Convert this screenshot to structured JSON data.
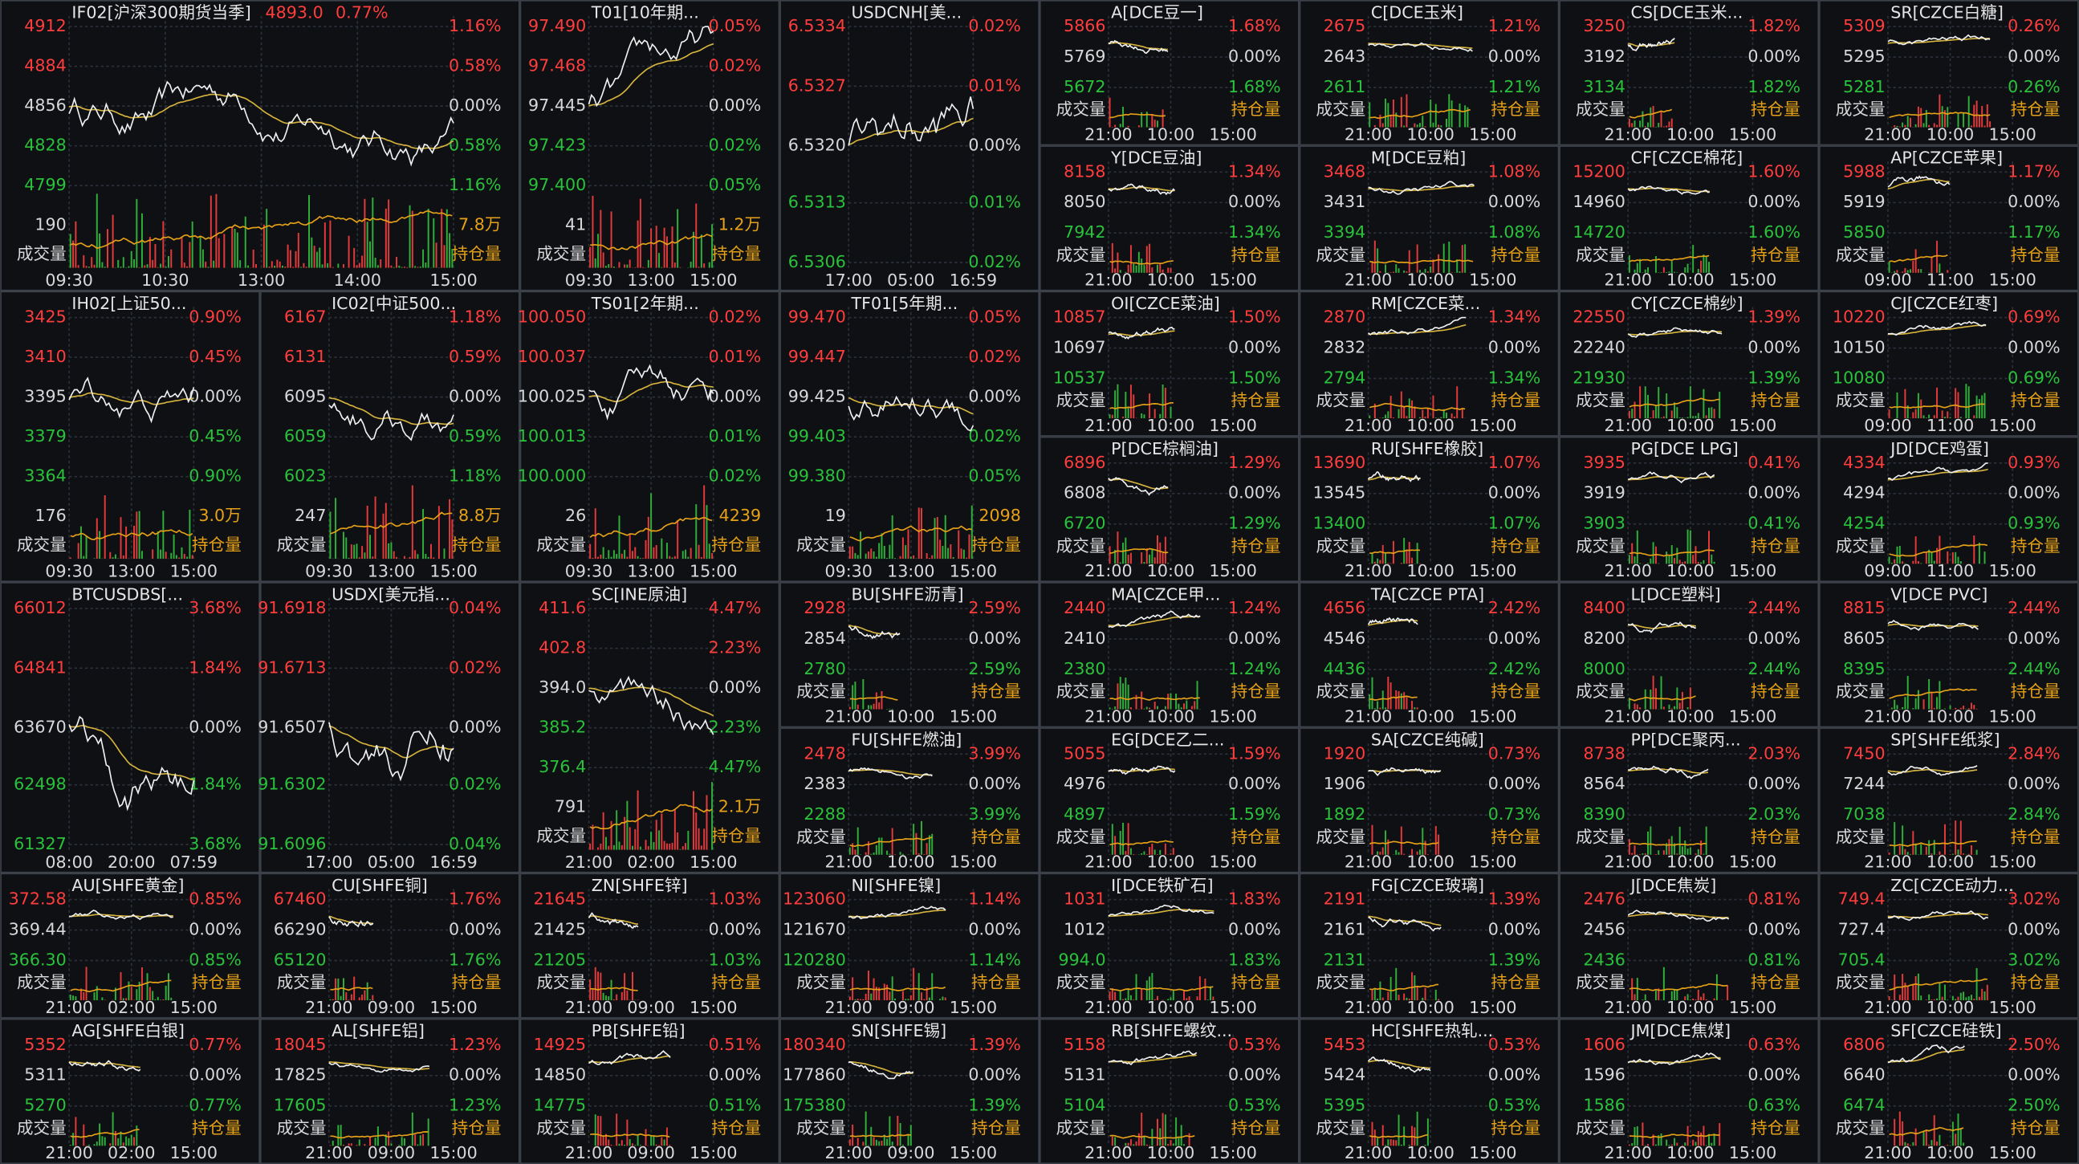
{
  "labels": {
    "volume": "成交量",
    "open_interest": "持仓量"
  },
  "panels": [
    {
      "title": "IF02[沪深300期货当季]",
      "quote": {
        "price": "4893.0",
        "change": "0.77%"
      },
      "prices": [
        "4912",
        "4884",
        "4856",
        "4828",
        "4799"
      ],
      "pcts": [
        "1.16%",
        "0.58%",
        "0.00%",
        "0.58%",
        "1.16%"
      ],
      "vol": "190",
      "oi": "7.8万",
      "times": [
        "09:30",
        "10:30",
        "13:00",
        "14:00",
        "15:00"
      ]
    },
    {
      "title": "T01[10年期...",
      "prices": [
        "97.490",
        "97.468",
        "97.445",
        "97.423",
        "97.400"
      ],
      "pcts": [
        "0.05%",
        "0.02%",
        "0.00%",
        "0.02%",
        "0.05%"
      ],
      "vol": "41",
      "oi": "1.2万",
      "times": [
        "09:30",
        "13:00",
        "15:00"
      ]
    },
    {
      "title": "USDCNH[美...",
      "prices": [
        "6.5334",
        "6.5327",
        "6.5320",
        "6.5313",
        "6.5306"
      ],
      "pcts": [
        "0.02%",
        "0.01%",
        "0.00%",
        "0.01%",
        "0.02%"
      ],
      "times": [
        "17:00",
        "05:00",
        "16:59"
      ]
    },
    {
      "title": "A[DCE豆一]",
      "prices": [
        "5866",
        "5769",
        "5672"
      ],
      "pcts": [
        "1.68%",
        "0.00%",
        "1.68%"
      ],
      "times": [
        "21:00",
        "10:00",
        "15:00"
      ]
    },
    {
      "title": "C[DCE玉米]",
      "prices": [
        "2675",
        "2643",
        "2611"
      ],
      "pcts": [
        "1.21%",
        "0.00%",
        "1.21%"
      ],
      "times": [
        "21:00",
        "10:00",
        "15:00"
      ]
    },
    {
      "title": "CS[DCE玉米...",
      "prices": [
        "3250",
        "3192",
        "3134"
      ],
      "pcts": [
        "1.82%",
        "0.00%",
        "1.82%"
      ],
      "times": [
        "21:00",
        "10:00",
        "15:00"
      ]
    },
    {
      "title": "SR[CZCE白糖]",
      "prices": [
        "5309",
        "5295",
        "5281"
      ],
      "pcts": [
        "0.26%",
        "0.00%",
        "0.26%"
      ],
      "times": [
        "21:00",
        "10:00",
        "15:00"
      ]
    },
    {
      "title": "Y[DCE豆油]",
      "prices": [
        "8158",
        "8050",
        "7942"
      ],
      "pcts": [
        "1.34%",
        "0.00%",
        "1.34%"
      ],
      "times": [
        "21:00",
        "10:00",
        "15:00"
      ]
    },
    {
      "title": "M[DCE豆粕]",
      "prices": [
        "3468",
        "3431",
        "3394"
      ],
      "pcts": [
        "1.08%",
        "0.00%",
        "1.08%"
      ],
      "times": [
        "21:00",
        "10:00",
        "15:00"
      ]
    },
    {
      "title": "CF[CZCE棉花]",
      "prices": [
        "15200",
        "14960",
        "14720"
      ],
      "pcts": [
        "1.60%",
        "0.00%",
        "1.60%"
      ],
      "times": [
        "21:00",
        "10:00",
        "15:00"
      ]
    },
    {
      "title": "AP[CZCE苹果]",
      "prices": [
        "5988",
        "5919",
        "5850"
      ],
      "pcts": [
        "1.17%",
        "0.00%",
        "1.17%"
      ],
      "times": [
        "09:00",
        "11:00",
        "15:00"
      ]
    },
    {
      "title": "IH02[上证50...",
      "prices": [
        "3425",
        "3410",
        "3395",
        "3379",
        "3364"
      ],
      "pcts": [
        "0.90%",
        "0.45%",
        "0.00%",
        "0.45%",
        "0.90%"
      ],
      "vol": "176",
      "oi": "3.0万",
      "times": [
        "09:30",
        "13:00",
        "15:00"
      ]
    },
    {
      "title": "IC02[中证500...",
      "prices": [
        "6167",
        "6131",
        "6095",
        "6059",
        "6023"
      ],
      "pcts": [
        "1.18%",
        "0.59%",
        "0.00%",
        "0.59%",
        "1.18%"
      ],
      "vol": "247",
      "oi": "8.8万",
      "times": [
        "09:30",
        "13:00",
        "15:00"
      ]
    },
    {
      "title": "TS01[2年期...",
      "prices": [
        "100.050",
        "100.037",
        "100.025",
        "100.013",
        "100.000"
      ],
      "pcts": [
        "0.02%",
        "0.01%",
        "0.00%",
        "0.01%",
        "0.02%"
      ],
      "vol": "26",
      "oi": "4239",
      "times": [
        "09:30",
        "13:00",
        "15:00"
      ]
    },
    {
      "title": "TF01[5年期...",
      "prices": [
        "99.470",
        "99.447",
        "99.425",
        "99.403",
        "99.380"
      ],
      "pcts": [
        "0.05%",
        "0.02%",
        "0.00%",
        "0.02%",
        "0.05%"
      ],
      "vol": "19",
      "oi": "2098",
      "times": [
        "09:30",
        "13:00",
        "15:00"
      ]
    },
    {
      "title": "OI[CZCE菜油]",
      "prices": [
        "10857",
        "10697",
        "10537"
      ],
      "pcts": [
        "1.50%",
        "0.00%",
        "1.50%"
      ],
      "times": [
        "21:00",
        "10:00",
        "15:00"
      ]
    },
    {
      "title": "RM[CZCE菜...",
      "prices": [
        "2870",
        "2832",
        "2794"
      ],
      "pcts": [
        "1.34%",
        "0.00%",
        "1.34%"
      ],
      "times": [
        "21:00",
        "10:00",
        "15:00"
      ]
    },
    {
      "title": "CY[CZCE棉纱]",
      "prices": [
        "22550",
        "22240",
        "21930"
      ],
      "pcts": [
        "1.39%",
        "0.00%",
        "1.39%"
      ],
      "times": [
        "21:00",
        "10:00",
        "15:00"
      ]
    },
    {
      "title": "CJ[CZCE红枣]",
      "prices": [
        "10220",
        "10150",
        "10080"
      ],
      "pcts": [
        "0.69%",
        "0.00%",
        "0.69%"
      ],
      "times": [
        "09:00",
        "11:00",
        "15:00"
      ]
    },
    {
      "title": "P[DCE棕榈油]",
      "prices": [
        "6896",
        "6808",
        "6720"
      ],
      "pcts": [
        "1.29%",
        "0.00%",
        "1.29%"
      ],
      "times": [
        "21:00",
        "10:00",
        "15:00"
      ]
    },
    {
      "title": "RU[SHFE橡胶]",
      "prices": [
        "13690",
        "13545",
        "13400"
      ],
      "pcts": [
        "1.07%",
        "0.00%",
        "1.07%"
      ],
      "times": [
        "21:00",
        "10:00",
        "15:00"
      ]
    },
    {
      "title": "PG[DCE LPG]",
      "prices": [
        "3935",
        "3919",
        "3903"
      ],
      "pcts": [
        "0.41%",
        "0.00%",
        "0.41%"
      ],
      "times": [
        "21:00",
        "10:00",
        "15:00"
      ]
    },
    {
      "title": "JD[DCE鸡蛋]",
      "prices": [
        "4334",
        "4294",
        "4254"
      ],
      "pcts": [
        "0.93%",
        "0.00%",
        "0.93%"
      ],
      "times": [
        "09:00",
        "11:00",
        "15:00"
      ]
    },
    {
      "title": "BTCUSDBS[...",
      "prices": [
        "66012",
        "64841",
        "63670",
        "62498",
        "61327"
      ],
      "pcts": [
        "3.68%",
        "1.84%",
        "0.00%",
        "1.84%",
        "3.68%"
      ],
      "times": [
        "08:00",
        "20:00",
        "07:59"
      ]
    },
    {
      "title": "USDX[美元指...",
      "prices": [
        "91.6918",
        "91.6713",
        "91.6507",
        "91.6302",
        "91.6096"
      ],
      "pcts": [
        "0.04%",
        "0.02%",
        "0.00%",
        "0.02%",
        "0.04%"
      ],
      "times": [
        "17:00",
        "05:00",
        "16:59"
      ]
    },
    {
      "title": "SC[INE原油]",
      "prices": [
        "411.6",
        "402.8",
        "394.0",
        "385.2",
        "376.4"
      ],
      "pcts": [
        "4.47%",
        "2.23%",
        "0.00%",
        "2.23%",
        "4.47%"
      ],
      "vol": "791",
      "oi": "2.1万",
      "times": [
        "21:00",
        "02:00",
        "15:00"
      ]
    },
    {
      "title": "BU[SHFE沥青]",
      "prices": [
        "2928",
        "2854",
        "2780"
      ],
      "pcts": [
        "2.59%",
        "0.00%",
        "2.59%"
      ],
      "times": [
        "21:00",
        "10:00",
        "15:00"
      ]
    },
    {
      "title": "MA[CZCE甲...",
      "prices": [
        "2440",
        "2410",
        "2380"
      ],
      "pcts": [
        "1.24%",
        "0.00%",
        "1.24%"
      ],
      "times": [
        "21:00",
        "10:00",
        "15:00"
      ]
    },
    {
      "title": "TA[CZCE PTA]",
      "prices": [
        "4656",
        "4546",
        "4436"
      ],
      "pcts": [
        "2.42%",
        "0.00%",
        "2.42%"
      ],
      "times": [
        "21:00",
        "10:00",
        "15:00"
      ]
    },
    {
      "title": "L[DCE塑料]",
      "prices": [
        "8400",
        "8200",
        "8000"
      ],
      "pcts": [
        "2.44%",
        "0.00%",
        "2.44%"
      ],
      "times": [
        "21:00",
        "10:00",
        "15:00"
      ]
    },
    {
      "title": "V[DCE PVC]",
      "prices": [
        "8815",
        "8605",
        "8395"
      ],
      "pcts": [
        "2.44%",
        "0.00%",
        "2.44%"
      ],
      "times": [
        "21:00",
        "10:00",
        "15:00"
      ]
    },
    {
      "title": "FU[SHFE燃油]",
      "prices": [
        "2478",
        "2383",
        "2288"
      ],
      "pcts": [
        "3.99%",
        "0.00%",
        "3.99%"
      ],
      "times": [
        "21:00",
        "10:00",
        "15:00"
      ]
    },
    {
      "title": "EG[DCE乙二...",
      "prices": [
        "5055",
        "4976",
        "4897"
      ],
      "pcts": [
        "1.59%",
        "0.00%",
        "1.59%"
      ],
      "times": [
        "21:00",
        "10:00",
        "15:00"
      ]
    },
    {
      "title": "SA[CZCE纯碱]",
      "prices": [
        "1920",
        "1906",
        "1892"
      ],
      "pcts": [
        "0.73%",
        "0.00%",
        "0.73%"
      ],
      "times": [
        "21:00",
        "10:00",
        "15:00"
      ]
    },
    {
      "title": "PP[DCE聚丙...",
      "prices": [
        "8738",
        "8564",
        "8390"
      ],
      "pcts": [
        "2.03%",
        "0.00%",
        "2.03%"
      ],
      "times": [
        "21:00",
        "10:00",
        "15:00"
      ]
    },
    {
      "title": "SP[SHFE纸浆]",
      "prices": [
        "7450",
        "7244",
        "7038"
      ],
      "pcts": [
        "2.84%",
        "0.00%",
        "2.84%"
      ],
      "times": [
        "21:00",
        "10:00",
        "15:00"
      ]
    },
    {
      "title": "AU[SHFE黄金]",
      "prices": [
        "372.58",
        "369.44",
        "366.30"
      ],
      "pcts": [
        "0.85%",
        "0.00%",
        "0.85%"
      ],
      "times": [
        "21:00",
        "02:00",
        "15:00"
      ]
    },
    {
      "title": "CU[SHFE铜]",
      "prices": [
        "67460",
        "66290",
        "65120"
      ],
      "pcts": [
        "1.76%",
        "0.00%",
        "1.76%"
      ],
      "times": [
        "21:00",
        "09:00",
        "15:00"
      ]
    },
    {
      "title": "ZN[SHFE锌]",
      "prices": [
        "21645",
        "21425",
        "21205"
      ],
      "pcts": [
        "1.03%",
        "0.00%",
        "1.03%"
      ],
      "times": [
        "21:00",
        "09:00",
        "15:00"
      ]
    },
    {
      "title": "NI[SHFE镍]",
      "prices": [
        "123060",
        "121670",
        "120280"
      ],
      "pcts": [
        "1.14%",
        "0.00%",
        "1.14%"
      ],
      "times": [
        "21:00",
        "09:00",
        "15:00"
      ]
    },
    {
      "title": "I[DCE铁矿石]",
      "prices": [
        "1031",
        "1012",
        "994.0"
      ],
      "pcts": [
        "1.83%",
        "0.00%",
        "1.83%"
      ],
      "times": [
        "21:00",
        "10:00",
        "15:00"
      ]
    },
    {
      "title": "FG[CZCE玻璃]",
      "prices": [
        "2191",
        "2161",
        "2131"
      ],
      "pcts": [
        "1.39%",
        "0.00%",
        "1.39%"
      ],
      "times": [
        "21:00",
        "10:00",
        "15:00"
      ]
    },
    {
      "title": "J[DCE焦炭]",
      "prices": [
        "2476",
        "2456",
        "2436"
      ],
      "pcts": [
        "0.81%",
        "0.00%",
        "0.81%"
      ],
      "times": [
        "21:00",
        "10:00",
        "15:00"
      ]
    },
    {
      "title": "ZC[CZCE动力...",
      "prices": [
        "749.4",
        "727.4",
        "705.4"
      ],
      "pcts": [
        "3.02%",
        "0.00%",
        "3.02%"
      ],
      "times": [
        "21:00",
        "10:00",
        "15:00"
      ]
    },
    {
      "title": "AG[SHFE白银]",
      "prices": [
        "5352",
        "5311",
        "5270"
      ],
      "pcts": [
        "0.77%",
        "0.00%",
        "0.77%"
      ],
      "times": [
        "21:00",
        "02:00",
        "15:00"
      ]
    },
    {
      "title": "AL[SHFE铝]",
      "prices": [
        "18045",
        "17825",
        "17605"
      ],
      "pcts": [
        "1.23%",
        "0.00%",
        "1.23%"
      ],
      "times": [
        "21:00",
        "09:00",
        "15:00"
      ]
    },
    {
      "title": "PB[SHFE铅]",
      "prices": [
        "14925",
        "14850",
        "14775"
      ],
      "pcts": [
        "0.51%",
        "0.00%",
        "0.51%"
      ],
      "times": [
        "21:00",
        "09:00",
        "15:00"
      ]
    },
    {
      "title": "SN[SHFE锡]",
      "prices": [
        "180340",
        "177860",
        "175380"
      ],
      "pcts": [
        "1.39%",
        "0.00%",
        "1.39%"
      ],
      "times": [
        "21:00",
        "09:00",
        "15:00"
      ]
    },
    {
      "title": "RB[SHFE螺纹...",
      "prices": [
        "5158",
        "5131",
        "5104"
      ],
      "pcts": [
        "0.53%",
        "0.00%",
        "0.53%"
      ],
      "times": [
        "21:00",
        "10:00",
        "15:00"
      ]
    },
    {
      "title": "HC[SHFE热轧...",
      "prices": [
        "5453",
        "5424",
        "5395"
      ],
      "pcts": [
        "0.53%",
        "0.00%",
        "0.53%"
      ],
      "times": [
        "21:00",
        "10:00",
        "15:00"
      ]
    },
    {
      "title": "JM[DCE焦煤]",
      "prices": [
        "1606",
        "1596",
        "1586"
      ],
      "pcts": [
        "0.63%",
        "0.00%",
        "0.63%"
      ],
      "times": [
        "21:00",
        "10:00",
        "15:00"
      ]
    },
    {
      "title": "SF[CZCE硅铁]",
      "prices": [
        "6806",
        "6640",
        "6474"
      ],
      "pcts": [
        "2.50%",
        "0.00%",
        "2.50%"
      ],
      "times": [
        "21:00",
        "10:00",
        "15:00"
      ]
    }
  ]
}
